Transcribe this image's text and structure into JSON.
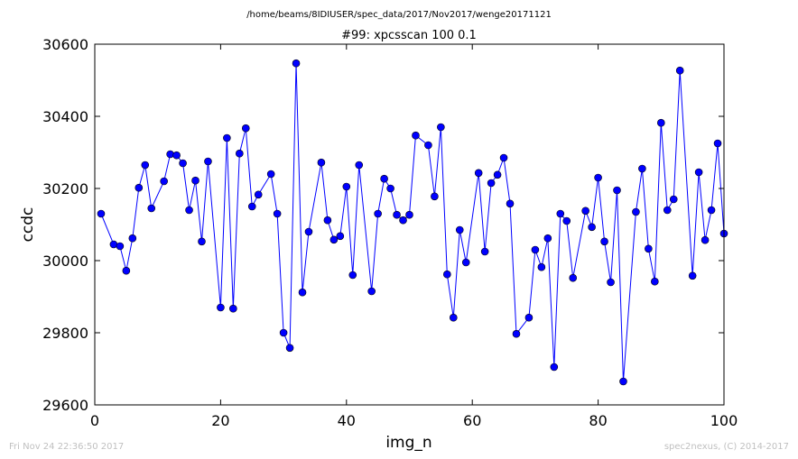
{
  "figure": {
    "suptitle": "/home/beams/8IDIUSER/spec_data/2017/Nov2017/wenge20171121",
    "timestamp": "Fri Nov 24 22:36:50 2017",
    "credit": "spec2nexus, (C) 2014-2017"
  },
  "chart_data": {
    "type": "line",
    "title": "#99: xpcsscan 100 0.1",
    "xlabel": "img_n",
    "ylabel": "ccdc",
    "xlim": [
      0,
      100
    ],
    "ylim": [
      29600,
      30600
    ],
    "xticks": [
      0,
      20,
      40,
      60,
      80,
      100
    ],
    "yticks": [
      29600,
      29800,
      30000,
      30200,
      30400,
      30600
    ],
    "grid": false,
    "line_color": "#0000ff",
    "marker_color": "#0000ff",
    "marker": "circle",
    "series": [
      {
        "x": [
          1,
          3,
          4,
          5,
          6,
          7,
          8,
          9,
          11,
          12,
          13,
          14,
          15,
          16,
          17,
          18,
          20,
          21,
          22,
          23,
          24,
          25,
          26,
          28,
          29,
          30,
          31,
          32,
          33,
          34,
          36,
          37,
          38,
          39,
          40,
          41,
          42,
          44,
          45,
          46,
          47,
          48,
          49,
          50,
          51,
          53,
          54,
          55,
          56,
          57,
          58,
          59,
          61,
          62,
          63,
          64,
          65,
          66,
          67,
          69,
          70,
          71,
          72,
          73,
          74,
          75,
          76,
          78,
          79,
          80,
          81,
          82,
          83,
          84,
          86,
          87,
          88,
          89,
          90,
          91,
          92,
          93,
          95,
          96,
          97,
          98,
          99,
          100
        ],
        "values": [
          30130,
          30045,
          30040,
          29972,
          30062,
          30202,
          30265,
          30145,
          30220,
          30295,
          30292,
          30270,
          30140,
          30222,
          30053,
          30275,
          29870,
          30340,
          29867,
          30297,
          30367,
          30150,
          30183,
          30240,
          30130,
          29800,
          29758,
          30547,
          29912,
          30080,
          30272,
          30112,
          30058,
          30068,
          30205,
          29960,
          30265,
          29915,
          30130,
          30227,
          30200,
          30127,
          30112,
          30127,
          30347,
          30320,
          30178,
          30370,
          29962,
          29842,
          30085,
          29995,
          30243,
          30025,
          30215,
          30238,
          30285,
          30158,
          29797,
          29842,
          30030,
          29982,
          30062,
          29705,
          30130,
          30110,
          29952,
          30138,
          30093,
          30230,
          30053,
          29940,
          30195,
          29665,
          30135,
          30255,
          30033,
          29942,
          30382,
          30140,
          30170,
          30527,
          29958,
          30245,
          30057,
          30140,
          30325,
          30075
        ]
      }
    ]
  }
}
